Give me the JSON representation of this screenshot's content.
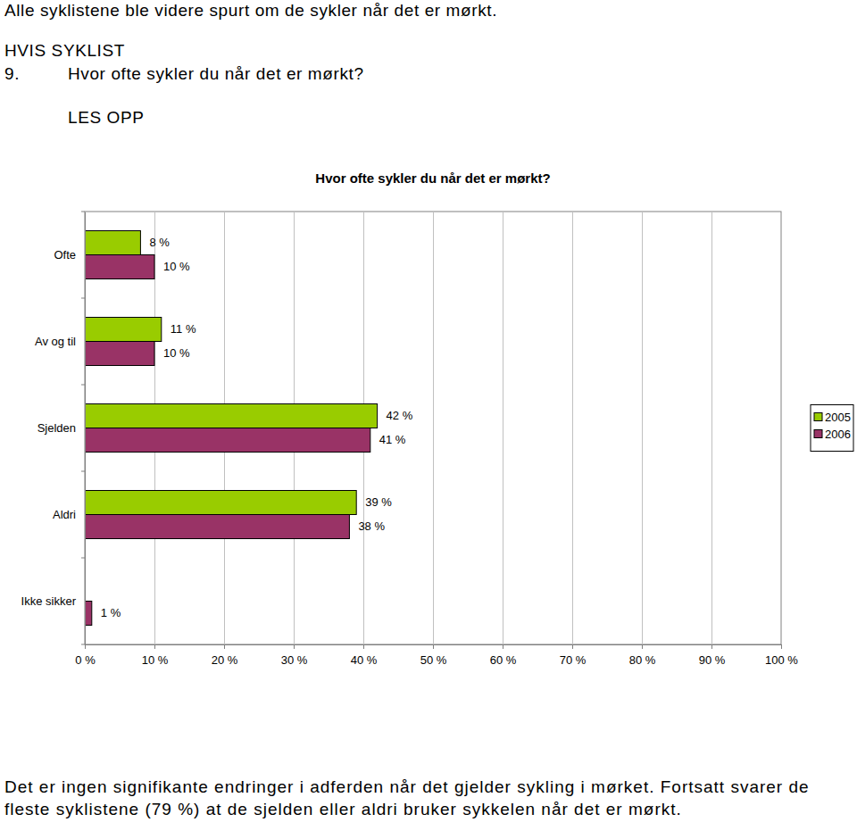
{
  "page": {
    "intro": "Alle syklistene ble videre spurt om de sykler når det er mørkt.",
    "condition": "HVIS SYKLIST",
    "question_number": "9.",
    "question": "Hvor ofte sykler du når det er mørkt?",
    "instruction": "LES OPP",
    "conclusion": "Det er ingen signifikante endringer i adferden når det gjelder sykling i mørket. Fortsatt svarer de fleste syklistene (79 %) at de sjelden eller aldri bruker sykkelen når det er mørkt."
  },
  "chart_data": {
    "type": "bar",
    "orientation": "horizontal",
    "title": "Hvor ofte sykler du når det er mørkt?",
    "categories": [
      "Ofte",
      "Av og til",
      "Sjelden",
      "Aldri",
      "Ikke sikker"
    ],
    "series": [
      {
        "name": "2005",
        "color": "#99cc00",
        "values": [
          8,
          11,
          42,
          39,
          null
        ],
        "value_labels": [
          "8 %",
          "11 %",
          "42 %",
          "39 %",
          null
        ]
      },
      {
        "name": "2006",
        "color": "#993366",
        "values": [
          10,
          10,
          41,
          38,
          1
        ],
        "value_labels": [
          "10 %",
          "10 %",
          "41 %",
          "38 %",
          "1 %"
        ]
      }
    ],
    "xlim": [
      0,
      100
    ],
    "xticks": [
      {
        "value": 0,
        "label": "0 %"
      },
      {
        "value": 10,
        "label": "10 %"
      },
      {
        "value": 20,
        "label": "20 %"
      },
      {
        "value": 30,
        "label": "30 %"
      },
      {
        "value": 40,
        "label": "40 %"
      },
      {
        "value": 50,
        "label": "50 %"
      },
      {
        "value": 60,
        "label": "60 %"
      },
      {
        "value": 70,
        "label": "70 %"
      },
      {
        "value": 80,
        "label": "80 %"
      },
      {
        "value": 90,
        "label": "90 %"
      },
      {
        "value": 100,
        "label": "100 %"
      }
    ],
    "grid": true,
    "data_labels": true,
    "legend": "right"
  }
}
